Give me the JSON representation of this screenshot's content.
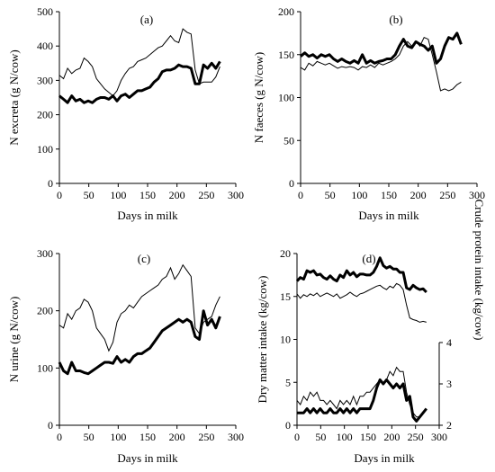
{
  "chart_data": [
    {
      "type": "line",
      "label": "(a)",
      "xlabel": "Days in milk",
      "ylabel": "N excreta (g N/cow)",
      "xlim": [
        0,
        300
      ],
      "ylim": [
        0,
        500
      ],
      "xticks": [
        0,
        50,
        100,
        150,
        200,
        250,
        300
      ],
      "yticks": [
        0,
        100,
        200,
        300,
        400,
        500
      ],
      "series": [
        {
          "style": "thin",
          "x": [
            0,
            7,
            14,
            21,
            28,
            35,
            42,
            49,
            56,
            63,
            70,
            77,
            84,
            91,
            98,
            105,
            112,
            119,
            126,
            133,
            140,
            147,
            154,
            161,
            168,
            175,
            182,
            189,
            196,
            203,
            210,
            217,
            224,
            231,
            238,
            245,
            252,
            259,
            266,
            273
          ],
          "y": [
            315,
            305,
            335,
            320,
            330,
            335,
            365,
            355,
            340,
            305,
            290,
            275,
            265,
            255,
            270,
            300,
            320,
            335,
            340,
            355,
            360,
            365,
            375,
            385,
            395,
            400,
            415,
            430,
            415,
            410,
            450,
            440,
            435,
            330,
            290,
            295,
            295,
            295,
            310,
            340
          ]
        },
        {
          "style": "thick",
          "x": [
            0,
            7,
            14,
            21,
            28,
            35,
            42,
            49,
            56,
            63,
            70,
            77,
            84,
            91,
            98,
            105,
            112,
            119,
            126,
            133,
            140,
            147,
            154,
            161,
            168,
            175,
            182,
            189,
            196,
            203,
            210,
            217,
            224,
            231,
            238,
            245,
            252,
            259,
            266,
            273
          ],
          "y": [
            255,
            245,
            235,
            255,
            240,
            245,
            235,
            240,
            235,
            245,
            250,
            250,
            245,
            255,
            240,
            255,
            260,
            250,
            260,
            270,
            270,
            275,
            280,
            295,
            305,
            325,
            330,
            330,
            335,
            345,
            340,
            340,
            335,
            290,
            290,
            345,
            335,
            350,
            335,
            355
          ]
        }
      ]
    },
    {
      "type": "line",
      "label": "(b)",
      "xlabel": "Days in milk",
      "ylabel": "N faeces (g N/cow)",
      "xlim": [
        0,
        300
      ],
      "ylim": [
        0,
        200
      ],
      "xticks": [
        0,
        50,
        100,
        150,
        200,
        250,
        300
      ],
      "yticks": [
        0,
        50,
        100,
        150,
        200
      ],
      "series": [
        {
          "style": "thin",
          "x": [
            0,
            7,
            14,
            21,
            28,
            35,
            42,
            49,
            56,
            63,
            70,
            77,
            84,
            91,
            98,
            105,
            112,
            119,
            126,
            133,
            140,
            147,
            154,
            161,
            168,
            175,
            182,
            189,
            196,
            203,
            210,
            217,
            224,
            231,
            238,
            245,
            252,
            259,
            266,
            273
          ],
          "y": [
            135,
            132,
            140,
            137,
            142,
            140,
            138,
            140,
            137,
            134,
            136,
            135,
            136,
            135,
            132,
            136,
            135,
            138,
            135,
            140,
            138,
            140,
            142,
            145,
            150,
            160,
            165,
            160,
            165,
            160,
            170,
            168,
            150,
            130,
            108,
            110,
            108,
            110,
            115,
            118
          ]
        },
        {
          "style": "thick",
          "x": [
            0,
            7,
            14,
            21,
            28,
            35,
            42,
            49,
            56,
            63,
            70,
            77,
            84,
            91,
            98,
            105,
            112,
            119,
            126,
            133,
            140,
            147,
            154,
            161,
            168,
            175,
            182,
            189,
            196,
            203,
            210,
            217,
            224,
            231,
            238,
            245,
            252,
            259,
            266,
            273
          ],
          "y": [
            148,
            152,
            148,
            150,
            146,
            150,
            148,
            150,
            145,
            142,
            145,
            142,
            140,
            143,
            140,
            150,
            140,
            143,
            140,
            142,
            143,
            145,
            145,
            150,
            160,
            168,
            160,
            158,
            165,
            162,
            160,
            155,
            160,
            140,
            145,
            160,
            170,
            168,
            175,
            162
          ]
        }
      ]
    },
    {
      "type": "line",
      "label": "(c)",
      "xlabel": "Days in milk",
      "ylabel": "N urine (g N/cow)",
      "xlim": [
        0,
        300
      ],
      "ylim": [
        0,
        300
      ],
      "xticks": [
        0,
        50,
        100,
        150,
        200,
        250,
        300
      ],
      "yticks": [
        0,
        100,
        200,
        300
      ],
      "series": [
        {
          "style": "thin",
          "x": [
            0,
            7,
            14,
            21,
            28,
            35,
            42,
            49,
            56,
            63,
            70,
            77,
            84,
            91,
            98,
            105,
            112,
            119,
            126,
            133,
            140,
            147,
            154,
            161,
            168,
            175,
            182,
            189,
            196,
            203,
            210,
            217,
            224,
            231,
            238,
            245,
            252,
            259,
            266,
            273
          ],
          "y": [
            175,
            170,
            195,
            185,
            200,
            205,
            220,
            215,
            200,
            170,
            160,
            150,
            130,
            145,
            180,
            195,
            200,
            210,
            205,
            215,
            225,
            230,
            235,
            240,
            245,
            255,
            260,
            275,
            255,
            265,
            280,
            270,
            260,
            170,
            160,
            180,
            185,
            190,
            210,
            225
          ]
        },
        {
          "style": "thick",
          "x": [
            0,
            7,
            14,
            21,
            28,
            35,
            42,
            49,
            56,
            63,
            70,
            77,
            84,
            91,
            98,
            105,
            112,
            119,
            126,
            133,
            140,
            147,
            154,
            161,
            168,
            175,
            182,
            189,
            196,
            203,
            210,
            217,
            224,
            231,
            238,
            245,
            252,
            259,
            266,
            273
          ],
          "y": [
            110,
            95,
            90,
            110,
            95,
            95,
            92,
            90,
            95,
            100,
            105,
            110,
            110,
            108,
            120,
            110,
            115,
            110,
            120,
            125,
            125,
            130,
            135,
            145,
            155,
            165,
            170,
            175,
            180,
            185,
            180,
            185,
            180,
            155,
            150,
            200,
            175,
            185,
            170,
            190
          ]
        }
      ]
    },
    {
      "type": "line",
      "label": "(d)",
      "xlabel": "Days in milk",
      "ylabel": "Dry matter intake (kg/cow)",
      "ylabel_right": "Crude protein intake (kg/cow)",
      "xlim": [
        0,
        300
      ],
      "ylim": [
        0,
        20
      ],
      "ylim_right": [
        2,
        4
      ],
      "xticks": [
        0,
        50,
        100,
        150,
        200,
        250,
        300
      ],
      "yticks": [
        0,
        5,
        10,
        15,
        20
      ],
      "yticks_right": [
        2,
        3,
        4
      ],
      "series": [
        {
          "style": "thin",
          "axis": "left",
          "x": [
            0,
            7,
            14,
            21,
            28,
            35,
            42,
            49,
            56,
            63,
            70,
            77,
            84,
            91,
            98,
            105,
            112,
            119,
            126,
            133,
            140,
            147,
            154,
            161,
            168,
            175,
            182,
            189,
            196,
            203,
            210,
            217,
            224,
            231,
            238,
            245,
            252,
            259,
            266,
            273
          ],
          "y": [
            15.3,
            14.8,
            15.2,
            15.0,
            15.3,
            15.1,
            15.4,
            15.0,
            15.2,
            15.4,
            15.2,
            15.0,
            15.3,
            14.8,
            15.0,
            15.2,
            15.5,
            15.2,
            15.0,
            15.3,
            15.4,
            15.6,
            15.8,
            16.0,
            16.2,
            16.3,
            16.0,
            15.8,
            16.2,
            16.0,
            16.5,
            16.3,
            15.8,
            14.0,
            12.5,
            12.3,
            12.2,
            12.0,
            12.1,
            12.0
          ]
        },
        {
          "style": "thick",
          "axis": "left",
          "x": [
            0,
            7,
            14,
            21,
            28,
            35,
            42,
            49,
            56,
            63,
            70,
            77,
            84,
            91,
            98,
            105,
            112,
            119,
            126,
            133,
            140,
            147,
            154,
            161,
            168,
            175,
            182,
            189,
            196,
            203,
            210,
            217,
            224,
            231,
            238,
            245,
            252,
            259,
            266,
            273
          ],
          "y": [
            16.8,
            17.2,
            17.0,
            18.0,
            17.8,
            18.0,
            17.5,
            17.6,
            17.2,
            17.0,
            17.4,
            17.0,
            16.8,
            17.5,
            17.2,
            18.0,
            17.5,
            17.8,
            17.3,
            17.6,
            17.6,
            17.5,
            17.5,
            17.8,
            18.5,
            19.5,
            18.6,
            18.3,
            18.5,
            18.2,
            18.2,
            17.8,
            17.8,
            16.0,
            15.8,
            16.3,
            16.0,
            15.8,
            15.9,
            15.5
          ]
        },
        {
          "style": "thin",
          "axis": "right",
          "x": [
            0,
            7,
            14,
            21,
            28,
            35,
            42,
            49,
            56,
            63,
            70,
            77,
            84,
            91,
            98,
            105,
            112,
            119,
            126,
            133,
            140,
            147,
            154,
            161,
            168,
            175,
            182,
            189,
            196,
            203,
            210,
            217,
            224,
            231,
            238,
            245,
            252,
            259,
            266,
            273
          ],
          "y": [
            2.6,
            2.5,
            2.7,
            2.6,
            2.8,
            2.7,
            2.8,
            2.6,
            2.6,
            2.5,
            2.6,
            2.5,
            2.4,
            2.6,
            2.5,
            2.6,
            2.5,
            2.7,
            2.5,
            2.7,
            2.7,
            2.8,
            2.8,
            2.9,
            3.0,
            3.1,
            3.0,
            3.1,
            3.3,
            3.2,
            3.4,
            3.3,
            3.3,
            2.8,
            2.5,
            2.3,
            2.2,
            2.2,
            2.3,
            2.4
          ]
        },
        {
          "style": "thick",
          "axis": "right",
          "x": [
            0,
            7,
            14,
            21,
            28,
            35,
            42,
            49,
            56,
            63,
            70,
            77,
            84,
            91,
            98,
            105,
            112,
            119,
            126,
            133,
            140,
            147,
            154,
            161,
            168,
            175,
            182,
            189,
            196,
            203,
            210,
            217,
            224,
            231,
            238,
            245,
            252,
            259,
            266,
            273
          ],
          "y": [
            2.3,
            2.3,
            2.3,
            2.4,
            2.3,
            2.4,
            2.3,
            2.4,
            2.3,
            2.3,
            2.4,
            2.3,
            2.3,
            2.4,
            2.3,
            2.4,
            2.3,
            2.4,
            2.3,
            2.4,
            2.4,
            2.4,
            2.4,
            2.6,
            2.9,
            3.1,
            3.0,
            3.1,
            3.0,
            2.9,
            3.0,
            2.9,
            3.0,
            2.6,
            2.7,
            2.2,
            2.1,
            2.2,
            2.3,
            2.4
          ]
        }
      ]
    }
  ]
}
